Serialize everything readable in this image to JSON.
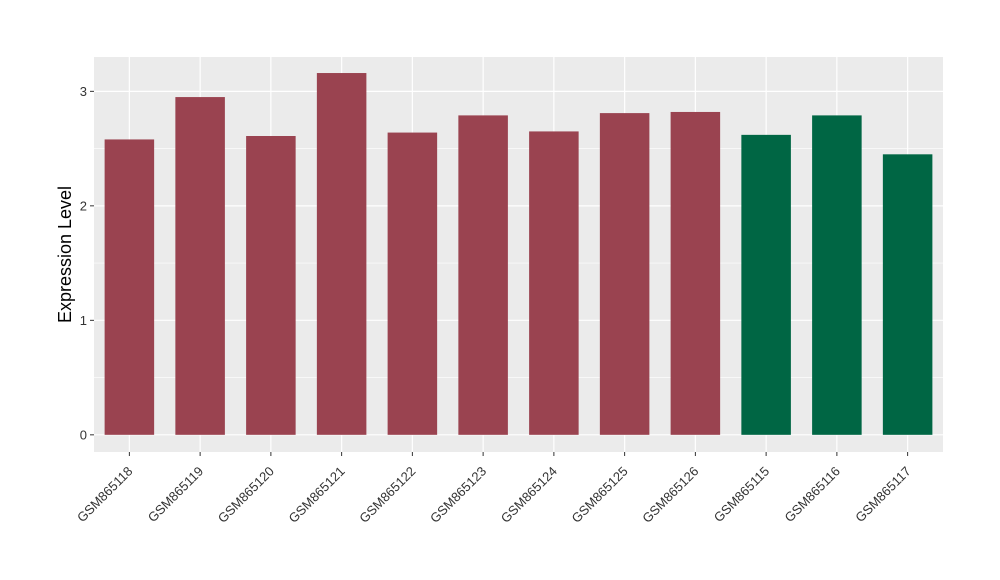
{
  "chart_data": {
    "type": "bar",
    "title": "",
    "xlabel": "",
    "ylabel": "Expression Level",
    "categories": [
      "GSM865118",
      "GSM865119",
      "GSM865120",
      "GSM865121",
      "GSM865122",
      "GSM865123",
      "GSM865124",
      "GSM865125",
      "GSM865126",
      "GSM865115",
      "GSM865116",
      "GSM865117"
    ],
    "values": [
      2.58,
      2.95,
      2.61,
      3.16,
      2.64,
      2.79,
      2.65,
      2.81,
      2.82,
      2.62,
      2.79,
      2.45
    ],
    "colors": [
      "#9a4350",
      "#9a4350",
      "#9a4350",
      "#9a4350",
      "#9a4350",
      "#9a4350",
      "#9a4350",
      "#9a4350",
      "#9a4350",
      "#006644",
      "#006644",
      "#006644"
    ],
    "yticks": [
      0,
      1,
      2,
      3
    ],
    "ylim": [
      -0.15,
      3.3
    ],
    "grid": true,
    "panel_background": "#ebebeb",
    "grid_color": "#ffffff"
  }
}
